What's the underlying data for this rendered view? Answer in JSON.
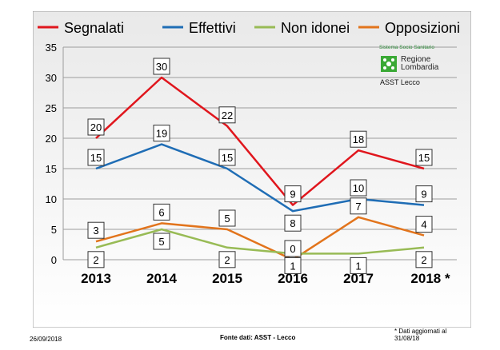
{
  "chart_data": {
    "type": "line",
    "categories": [
      "2013",
      "2014",
      "2015",
      "2016",
      "2017",
      "2018 *"
    ],
    "ylim": [
      0,
      35
    ],
    "yticks": [
      0,
      5,
      10,
      15,
      20,
      25,
      30,
      35
    ],
    "grid": true,
    "legend_position": "top",
    "series": [
      {
        "name": "Segnalati",
        "color": "#e0161d",
        "values": [
          20,
          30,
          22,
          9,
          18,
          15
        ]
      },
      {
        "name": "Effettivi",
        "color": "#1f6db5",
        "values": [
          15,
          19,
          15,
          8,
          10,
          9
        ]
      },
      {
        "name": "Non idonei",
        "color": "#98bb55",
        "values": [
          2,
          5,
          2,
          1,
          1,
          2
        ]
      },
      {
        "name": "Opposizioni",
        "color": "#e2741c",
        "values": [
          3,
          6,
          5,
          0,
          7,
          4
        ]
      }
    ]
  },
  "logo": {
    "top_text": "Sistema Socio Sanitario",
    "region_line1": "Regione",
    "region_line2": "Lombardia",
    "asst": "ASST Lecco"
  },
  "note": "* Dati aggiornati al 31/08/18",
  "footer": {
    "date": "26/09/2018",
    "source": "Fonte dati: ASST - Lecco"
  }
}
